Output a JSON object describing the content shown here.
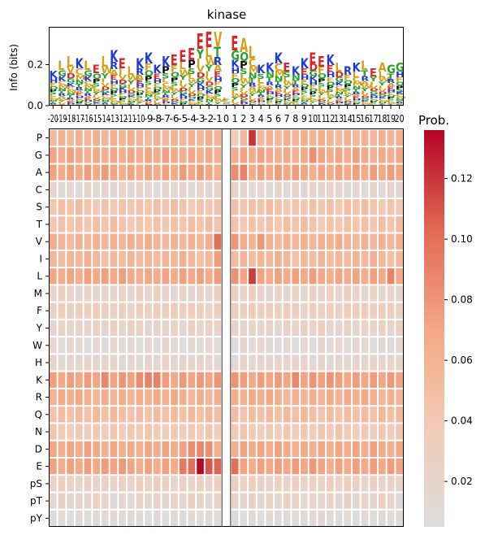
{
  "chart_data": [
    {
      "type": "sequence-logo",
      "title": "kinase",
      "ylabel": "Info (bits)",
      "ylim": [
        0,
        0.38
      ],
      "yticks": [
        0.0,
        0.2
      ],
      "ytick_labels": [
        "0.0",
        "0.2"
      ],
      "positions": [
        -20,
        -19,
        -18,
        -17,
        -16,
        -15,
        -14,
        -13,
        -12,
        -11,
        -10,
        -9,
        -8,
        -7,
        -6,
        -5,
        -4,
        -3,
        -2,
        -1,
        0,
        1,
        2,
        3,
        4,
        5,
        6,
        7,
        8,
        9,
        10,
        11,
        12,
        13,
        14,
        15,
        16,
        17,
        18,
        19,
        20
      ],
      "position_labels": [
        "-20",
        "-19",
        "-18",
        "-17",
        "-16",
        "-15",
        "-14",
        "-13",
        "-12",
        "-11",
        "-10",
        "-9",
        "-8",
        "-7",
        "-6",
        "-5",
        "-4",
        "-3",
        "-2",
        "-1",
        "0",
        "1",
        "2",
        "3",
        "4",
        "5",
        "6",
        "7",
        "8",
        "9",
        "10",
        "11",
        "12",
        "13",
        "14",
        "15",
        "16",
        "17",
        "18",
        "19",
        "20"
      ],
      "column_info": [
        0.17,
        0.22,
        0.24,
        0.23,
        0.22,
        0.2,
        0.24,
        0.27,
        0.23,
        0.19,
        0.23,
        0.26,
        0.2,
        0.24,
        0.25,
        0.27,
        0.28,
        0.35,
        0.36,
        0.36,
        0.04,
        0.34,
        0.33,
        0.29,
        0.2,
        0.21,
        0.26,
        0.21,
        0.19,
        0.23,
        0.26,
        0.24,
        0.25,
        0.21,
        0.19,
        0.21,
        0.22,
        0.18,
        0.21,
        0.2,
        0.21
      ],
      "top_letters": [
        "K",
        "L",
        "L",
        "K",
        "L",
        "E",
        "L",
        "K",
        "E",
        "L",
        "K",
        "K",
        "K",
        "K",
        "E",
        "E",
        "E",
        "E",
        "E",
        "V",
        "L",
        "E",
        "A",
        "L",
        "K",
        "K",
        "K",
        "E",
        "K",
        "K",
        "E",
        "E",
        "K",
        "L",
        "R",
        "K",
        "L",
        "E",
        "A",
        "G",
        "G"
      ],
      "letter_colors": {
        "acidic": "#d62728",
        "basic": "#1f3bd6",
        "hydrophobic": "#d4a017",
        "polar": "#2ca02c",
        "proline": "#000000",
        "other": "#9467bd"
      }
    },
    {
      "type": "heatmap",
      "x_positions": [
        -20,
        -19,
        -18,
        -17,
        -16,
        -15,
        -14,
        -13,
        -12,
        -11,
        -10,
        -9,
        -8,
        -7,
        -6,
        -5,
        -4,
        -3,
        -2,
        -1,
        0,
        1,
        2,
        3,
        4,
        5,
        6,
        7,
        8,
        9,
        10,
        11,
        12,
        13,
        14,
        15,
        16,
        17,
        18,
        19,
        20
      ],
      "rows": [
        "P",
        "G",
        "A",
        "C",
        "S",
        "T",
        "V",
        "I",
        "L",
        "M",
        "F",
        "Y",
        "W",
        "H",
        "K",
        "R",
        "Q",
        "N",
        "D",
        "E",
        "pS",
        "pT",
        "pY"
      ],
      "row_base": [
        0.06,
        0.068,
        0.071,
        0.018,
        0.045,
        0.045,
        0.06,
        0.055,
        0.07,
        0.022,
        0.03,
        0.022,
        0.012,
        0.018,
        0.075,
        0.063,
        0.05,
        0.038,
        0.068,
        0.072,
        0.025,
        0.02,
        0.01
      ],
      "overrides": [
        {
          "row": "P",
          "position": 0,
          "value": 0.018
        },
        {
          "row": "P",
          "position": 1,
          "value": 0.035
        },
        {
          "row": "P",
          "position": 3,
          "value": 0.12
        },
        {
          "row": "V",
          "position": -1,
          "value": 0.1
        },
        {
          "row": "V",
          "position": 1,
          "value": 0.08
        },
        {
          "row": "V",
          "position": 4,
          "value": 0.08
        },
        {
          "row": "I",
          "position": -1,
          "value": 0.075
        },
        {
          "row": "L",
          "position": 3,
          "value": 0.118
        },
        {
          "row": "L",
          "position": 19,
          "value": 0.09
        },
        {
          "row": "L",
          "position": 1,
          "value": 0.082
        },
        {
          "row": "G",
          "position": 10,
          "value": 0.085
        },
        {
          "row": "A",
          "position": 2,
          "value": 0.09
        },
        {
          "row": "A",
          "position": 1,
          "value": 0.085
        },
        {
          "row": "K",
          "position": -8,
          "value": 0.09
        },
        {
          "row": "K",
          "position": -9,
          "value": 0.09
        },
        {
          "row": "K",
          "position": -14,
          "value": 0.088
        },
        {
          "row": "K",
          "position": -10,
          "value": 0.085
        },
        {
          "row": "K",
          "position": 8,
          "value": 0.088
        },
        {
          "row": "D",
          "position": -4,
          "value": 0.085
        },
        {
          "row": "D",
          "position": -3,
          "value": 0.088
        },
        {
          "row": "D",
          "position": -2,
          "value": 0.082
        },
        {
          "row": "E",
          "position": -3,
          "value": 0.135
        },
        {
          "row": "E",
          "position": -2,
          "value": 0.11
        },
        {
          "row": "E",
          "position": -1,
          "value": 0.105
        },
        {
          "row": "E",
          "position": -4,
          "value": 0.1
        },
        {
          "row": "E",
          "position": -5,
          "value": 0.095
        },
        {
          "row": "E",
          "position": 1,
          "value": 0.1
        }
      ],
      "null_position": 0,
      "colorbar": {
        "title": "Prob.",
        "vmin": 0.005,
        "vmax": 0.136,
        "ticks": [
          0.02,
          0.04,
          0.06,
          0.08,
          0.1,
          0.12
        ],
        "tick_labels": [
          "0.02",
          "0.04",
          "0.06",
          "0.08",
          "0.10",
          "0.12"
        ],
        "colors": [
          "#dcdcdc",
          "#f2cbb7",
          "#f4a784",
          "#e26952",
          "#b40426"
        ]
      }
    }
  ]
}
